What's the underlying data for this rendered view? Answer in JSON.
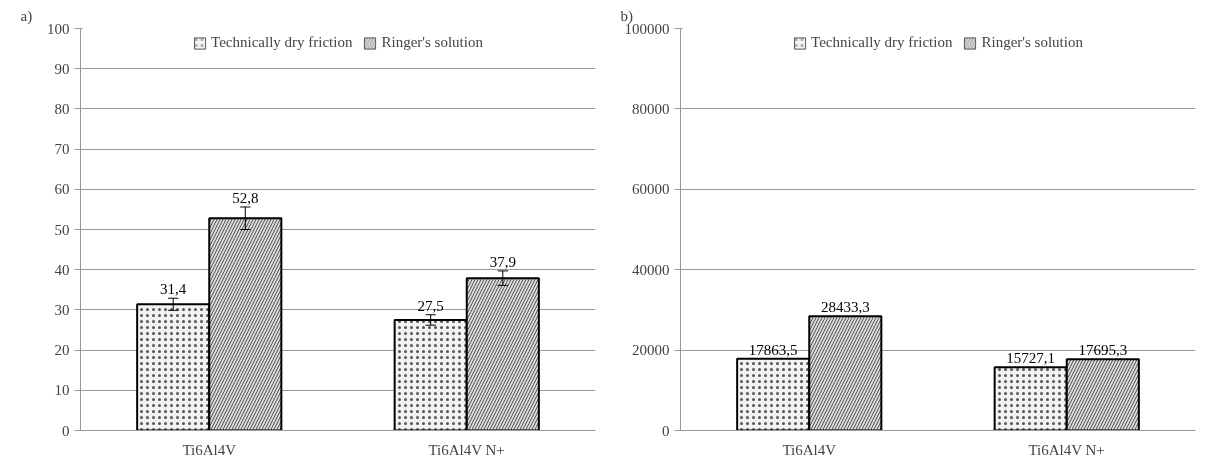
{
  "chart_data": [
    {
      "type": "bar",
      "title": "a)",
      "categories": [
        "Ti6Al4V",
        "Ti6Al4V N+"
      ],
      "series": [
        {
          "name": "Technically dry friction",
          "color": "#f2f2f2",
          "values": [
            31.4,
            27.5
          ],
          "errors": [
            1.5,
            1.3
          ],
          "value_labels": [
            "31,4",
            "27,5"
          ]
        },
        {
          "name": "Ringer's solution",
          "color": "#d9d9d9",
          "values": [
            52.8,
            37.9
          ],
          "errors": [
            2.8,
            1.8
          ],
          "value_labels": [
            "52,8",
            "37,9"
          ]
        }
      ],
      "ylim": [
        0,
        100
      ],
      "yticks": [
        0,
        10,
        20,
        30,
        40,
        50,
        60,
        70,
        80,
        90,
        100
      ],
      "grid": "y",
      "legend": "top"
    },
    {
      "type": "bar",
      "title": "b)",
      "categories": [
        "Ti6Al4V",
        "Ti6Al4V N+"
      ],
      "series": [
        {
          "name": "Technically dry friction",
          "color": "#f2f2f2",
          "values": [
            17863.5,
            15727.1
          ],
          "value_labels": [
            "17863,5",
            "15727,1"
          ]
        },
        {
          "name": "Ringer's solution",
          "color": "#d9d9d9",
          "values": [
            28433.3,
            17695.3
          ],
          "value_labels": [
            "28433,3",
            "17695,3"
          ]
        }
      ],
      "ylim": [
        0,
        100000
      ],
      "yticks": [
        0,
        20000,
        40000,
        60000,
        80000,
        100000
      ],
      "grid": "y",
      "legend": "top"
    }
  ]
}
